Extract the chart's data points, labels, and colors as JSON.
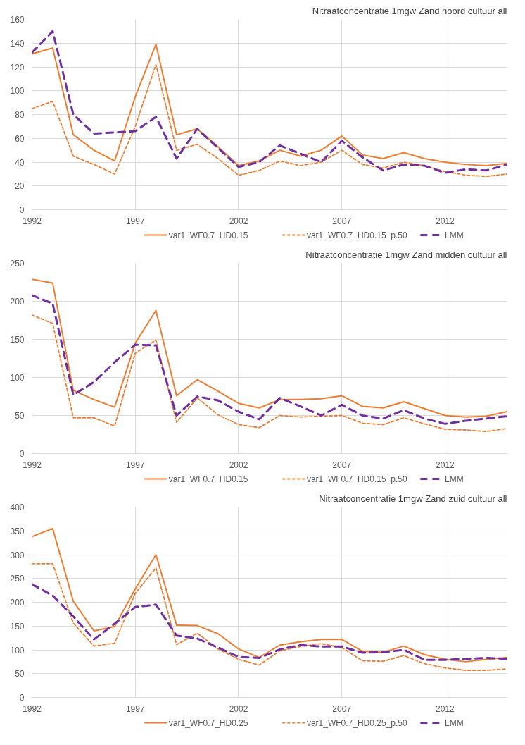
{
  "chart_data": [
    {
      "type": "line",
      "title": "Nitraatconcentratie 1mgw Zand noord cultuur all",
      "x": [
        1992,
        1993,
        1994,
        1995,
        1996,
        1997,
        1998,
        1999,
        2000,
        2001,
        2002,
        2003,
        2004,
        2005,
        2006,
        2007,
        2008,
        2009,
        2010,
        2011,
        2012,
        2013,
        2014,
        2015
      ],
      "xlim": [
        1992,
        2015
      ],
      "xticks": [
        1992,
        1997,
        2002,
        2007,
        2012
      ],
      "ylim": [
        0,
        160
      ],
      "yticks": [
        0,
        20,
        40,
        60,
        80,
        100,
        120,
        140,
        160
      ],
      "grid": true,
      "legend": "bottom",
      "series": [
        {
          "name": "var1_WF0.7_HD0.15",
          "color": "#ed7d31",
          "line_style": "solid",
          "values": [
            131,
            136,
            63,
            50,
            41,
            95,
            139,
            63,
            68,
            53,
            37,
            41,
            50,
            45,
            50,
            62,
            46,
            43,
            48,
            43,
            40,
            38,
            37,
            39
          ]
        },
        {
          "name": "var1_WF0.7_HD0.15_p.50",
          "color": "#ed7d31",
          "line_style": "dotted",
          "values": [
            85,
            91,
            45,
            38,
            30,
            70,
            122,
            50,
            55,
            43,
            29,
            33,
            41,
            37,
            40,
            50,
            38,
            35,
            40,
            37,
            32,
            29,
            28,
            30
          ]
        },
        {
          "name": "LMM",
          "color": "#7030a0",
          "line_style": "dashed",
          "values": [
            132,
            150,
            80,
            64,
            65,
            66,
            78,
            43,
            68,
            52,
            36,
            40,
            54,
            47,
            40,
            58,
            44,
            33,
            38,
            37,
            31,
            34,
            33,
            38
          ]
        }
      ]
    },
    {
      "type": "line",
      "title": "Nitraatconcentratie 1mgw Zand midden cultuur all",
      "x": [
        1992,
        1993,
        1994,
        1995,
        1996,
        1997,
        1998,
        1999,
        2000,
        2001,
        2002,
        2003,
        2004,
        2005,
        2006,
        2007,
        2008,
        2009,
        2010,
        2011,
        2012,
        2013,
        2014,
        2015
      ],
      "xlim": [
        1992,
        2015
      ],
      "xticks": [
        1992,
        1997,
        2002,
        2007,
        2012
      ],
      "ylim": [
        0,
        250
      ],
      "yticks": [
        0,
        50,
        100,
        150,
        200,
        250
      ],
      "grid": true,
      "legend": "bottom",
      "series": [
        {
          "name": "var1_WF0.7_HD0.15",
          "color": "#ed7d31",
          "line_style": "solid",
          "values": [
            229,
            224,
            83,
            71,
            61,
            145,
            188,
            76,
            97,
            82,
            66,
            60,
            71,
            71,
            72,
            76,
            62,
            60,
            68,
            59,
            50,
            48,
            49,
            55
          ]
        },
        {
          "name": "var1_WF0.7_HD0.15_p.50",
          "color": "#ed7d31",
          "line_style": "dotted",
          "values": [
            182,
            171,
            47,
            47,
            36,
            132,
            149,
            41,
            73,
            51,
            38,
            34,
            50,
            48,
            49,
            50,
            40,
            38,
            47,
            39,
            32,
            31,
            29,
            33
          ]
        },
        {
          "name": "LMM",
          "color": "#7030a0",
          "line_style": "dashed",
          "values": [
            208,
            197,
            77,
            94,
            120,
            143,
            142,
            50,
            75,
            70,
            55,
            45,
            73,
            62,
            50,
            64,
            50,
            46,
            57,
            46,
            39,
            43,
            46,
            49
          ]
        }
      ]
    },
    {
      "type": "line",
      "title": "Nitraatconcentratie 1mgw Zand zuid cultuur all",
      "x": [
        1992,
        1993,
        1994,
        1995,
        1996,
        1997,
        1998,
        1999,
        2000,
        2001,
        2002,
        2003,
        2004,
        2005,
        2006,
        2007,
        2008,
        2009,
        2010,
        2011,
        2012,
        2013,
        2014,
        2015
      ],
      "xlim": [
        1992,
        2015
      ],
      "xticks": [
        1992,
        1997,
        2002,
        2007,
        2012
      ],
      "ylim": [
        0,
        400
      ],
      "yticks": [
        0,
        50,
        100,
        150,
        200,
        250,
        300,
        350,
        400
      ],
      "grid": true,
      "legend": "bottom",
      "series": [
        {
          "name": "var1_WF0.7_HD0.25",
          "color": "#ed7d31",
          "line_style": "solid",
          "values": [
            338,
            355,
            202,
            140,
            149,
            228,
            300,
            152,
            151,
            134,
            102,
            84,
            110,
            117,
            122,
            122,
            97,
            95,
            108,
            90,
            80,
            75,
            80,
            84
          ]
        },
        {
          "name": "var1_WF0.7_HD0.25_p.50",
          "color": "#ed7d31",
          "line_style": "dotted",
          "values": [
            281,
            281,
            156,
            108,
            114,
            219,
            272,
            111,
            135,
            102,
            80,
            68,
            98,
            107,
            113,
            105,
            77,
            76,
            88,
            71,
            62,
            57,
            57,
            60
          ]
        },
        {
          "name": "LMM",
          "color": "#7030a0",
          "line_style": "dashed",
          "values": [
            238,
            214,
            170,
            122,
            155,
            190,
            195,
            130,
            124,
            105,
            85,
            83,
            101,
            110,
            107,
            107,
            94,
            95,
            100,
            79,
            79,
            81,
            83,
            81
          ]
        }
      ]
    }
  ]
}
